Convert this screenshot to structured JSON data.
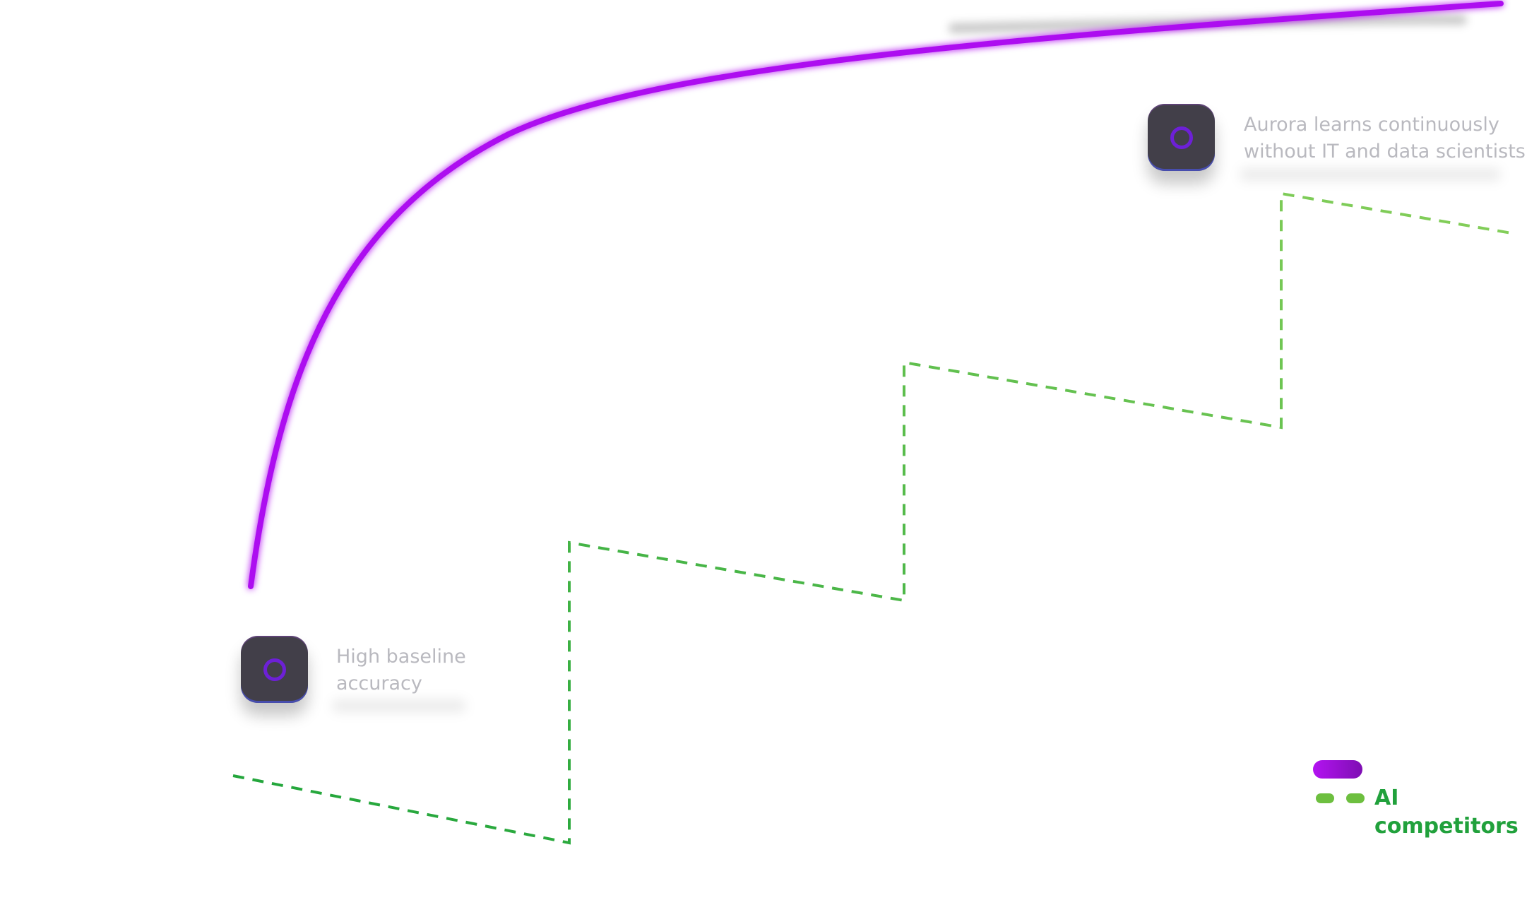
{
  "colors": {
    "aurora_line": "#ad0ff0",
    "competitor_line": "#2fae3f",
    "competitor_line_light": "#78c955",
    "marker_bg": "#423f49",
    "marker_ring": "#6d20d6",
    "label_gray": "#b9b9bf",
    "legend_text": "#21a13c"
  },
  "markers": [
    {
      "icon": "ring-icon",
      "label": "High baseline\naccuracy"
    },
    {
      "icon": "ring-icon",
      "label": "Aurora learns continuously\nwithout IT and data scientists"
    }
  ],
  "legend": {
    "aurora_swatch": "purple-pill",
    "competitors_label": "AI competitors"
  }
}
